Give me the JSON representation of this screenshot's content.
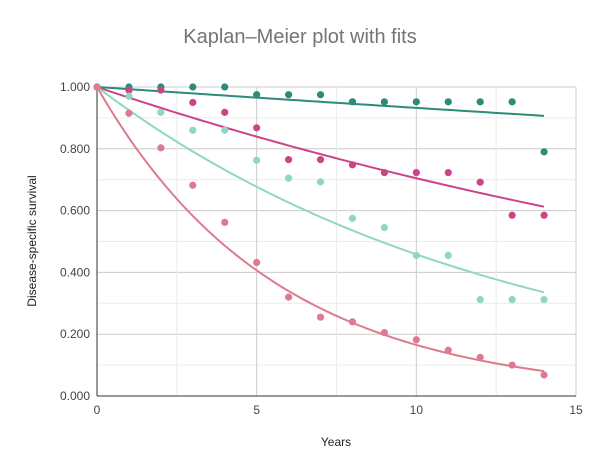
{
  "chart_data": {
    "type": "scatter",
    "title": "Kaplan–Meier plot with fits",
    "xlabel": "Years",
    "ylabel": "Disease-specific survival",
    "xlim": [
      0,
      15
    ],
    "ylim": [
      0,
      1
    ],
    "x_ticks": [
      "0",
      "5",
      "10",
      "15"
    ],
    "y_ticks": [
      "0.000",
      "0.200",
      "0.400",
      "0.600",
      "0.800",
      "1.000"
    ],
    "grid": true,
    "legend": "none",
    "series": [
      {
        "color": "#2e8b7a",
        "points": [
          [
            0,
            1.0
          ],
          [
            1,
            1.0
          ],
          [
            2,
            1.0
          ],
          [
            3,
            1.0
          ],
          [
            4,
            1.0
          ],
          [
            5,
            0.975
          ],
          [
            6,
            0.975
          ],
          [
            7,
            0.975
          ],
          [
            8,
            0.952
          ],
          [
            9,
            0.952
          ],
          [
            10,
            0.952
          ],
          [
            11,
            0.952
          ],
          [
            12,
            0.952
          ],
          [
            13,
            0.952
          ],
          [
            14,
            0.79
          ]
        ],
        "fit": {
          "kind": "exponential",
          "rate": 0.007
        }
      },
      {
        "color": "#cc4488",
        "points": [
          [
            0,
            1.0
          ],
          [
            1,
            0.99
          ],
          [
            2,
            0.99
          ],
          [
            3,
            0.95
          ],
          [
            4,
            0.918
          ],
          [
            5,
            0.868
          ],
          [
            6,
            0.765
          ],
          [
            7,
            0.765
          ],
          [
            8,
            0.748
          ],
          [
            9,
            0.723
          ],
          [
            10,
            0.723
          ],
          [
            11,
            0.723
          ],
          [
            12,
            0.692
          ],
          [
            13,
            0.585
          ],
          [
            14,
            0.585
          ]
        ],
        "fit": {
          "kind": "exponential",
          "rate": 0.035
        }
      },
      {
        "color": "#8fd8bf",
        "points": [
          [
            0,
            1.0
          ],
          [
            1,
            0.97
          ],
          [
            2,
            0.918
          ],
          [
            3,
            0.86
          ],
          [
            4,
            0.86
          ],
          [
            5,
            0.763
          ],
          [
            6,
            0.705
          ],
          [
            7,
            0.693
          ],
          [
            8,
            0.575
          ],
          [
            9,
            0.545
          ],
          [
            10,
            0.455
          ],
          [
            11,
            0.455
          ],
          [
            12,
            0.312
          ],
          [
            13,
            0.312
          ],
          [
            14,
            0.312
          ]
        ],
        "fit": {
          "kind": "exponential",
          "rate": 0.078
        }
      },
      {
        "color": "#de7a8e",
        "points": [
          [
            0,
            1.0
          ],
          [
            1,
            0.915
          ],
          [
            2,
            0.803
          ],
          [
            3,
            0.682
          ],
          [
            4,
            0.562
          ],
          [
            5,
            0.432
          ],
          [
            6,
            0.32
          ],
          [
            7,
            0.255
          ],
          [
            8,
            0.24
          ],
          [
            9,
            0.205
          ],
          [
            10,
            0.182
          ],
          [
            11,
            0.148
          ],
          [
            12,
            0.125
          ],
          [
            13,
            0.1
          ],
          [
            14,
            0.068
          ]
        ],
        "fit": {
          "kind": "exponential",
          "rate": 0.18
        }
      }
    ]
  }
}
